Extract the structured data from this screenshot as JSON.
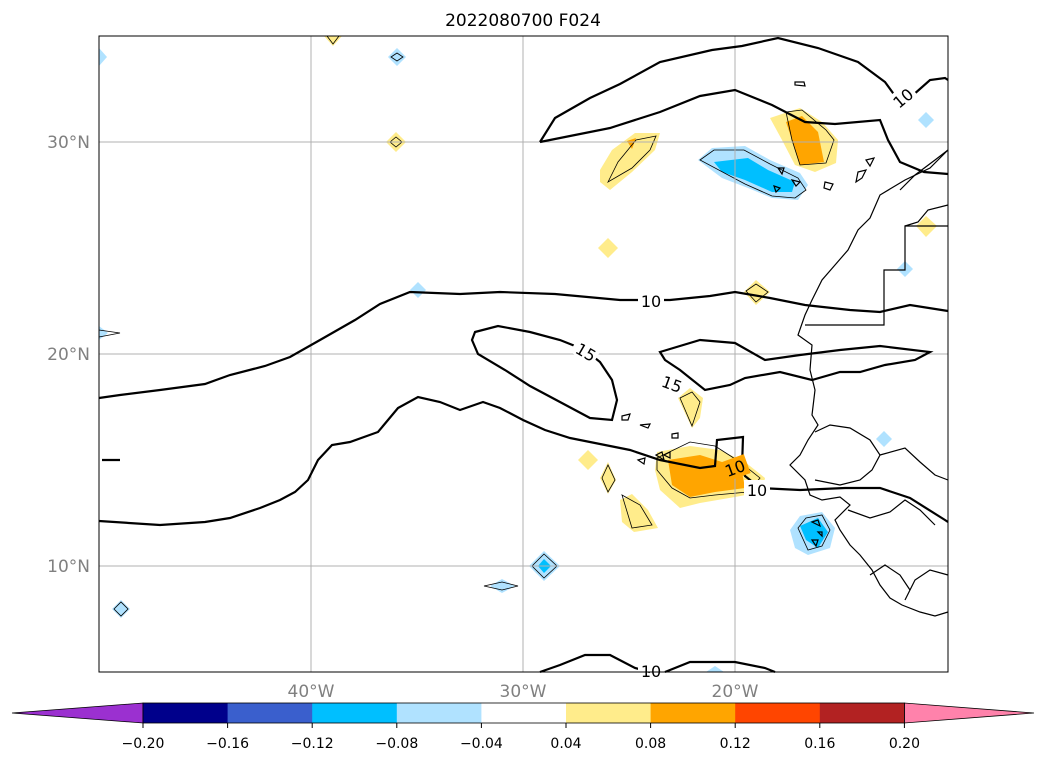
{
  "title": "2022080700 F024",
  "latitude_labels": [
    "30°N",
    "20°N",
    "10°N"
  ],
  "longitude_labels": [
    "40°W",
    "30°W",
    "20°W"
  ],
  "contour_labels": [
    "10",
    "15",
    "15",
    "10",
    "10",
    "10",
    "10"
  ],
  "colorbar": {
    "ticks": [
      "−0.20",
      "−0.16",
      "−0.12",
      "−0.08",
      "−0.04",
      "0.04",
      "0.08",
      "0.12",
      "0.16",
      "0.20"
    ],
    "colors": [
      "#9b30d0",
      "#00008b",
      "#3a5fcd",
      "#00bfff",
      "#b0e2ff",
      "#ffffff",
      "#ffec8b",
      "#ffa500",
      "#ff4500",
      "#b22222",
      "#ff82ab"
    ]
  },
  "colors": {
    "light_yellow": "#ffec8b",
    "orange": "#ffa500",
    "light_blue": "#b0e2ff",
    "deep_sky_blue": "#00bfff",
    "grid": "#b0b0b0",
    "coastline": "#000000"
  }
}
